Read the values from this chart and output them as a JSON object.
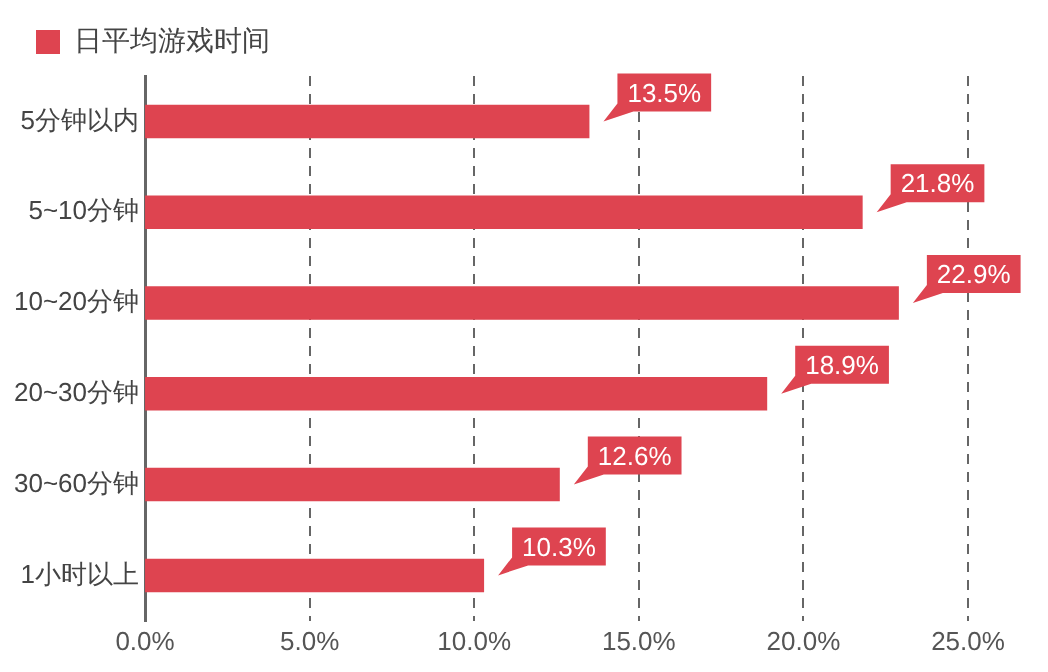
{
  "chart_data": {
    "type": "bar",
    "orientation": "horizontal",
    "categories": [
      "5分钟以内",
      "5~10分钟",
      "10~20分钟",
      "20~30分钟",
      "30~60分钟",
      "1小时以上"
    ],
    "series": [
      {
        "name": "日平均游戏时间",
        "color": "#de4450",
        "values": [
          13.5,
          21.8,
          22.9,
          18.9,
          12.6,
          10.3
        ],
        "value_labels": [
          "13.5%",
          "21.8%",
          "22.9%",
          "18.9%",
          "12.6%",
          "10.3%"
        ]
      }
    ],
    "xlim": [
      0,
      25
    ],
    "xticks": [
      {
        "value": 0,
        "label": "0.0%"
      },
      {
        "value": 5,
        "label": "5.0%"
      },
      {
        "value": 10,
        "label": "10.0%"
      },
      {
        "value": 15,
        "label": "15.0%"
      },
      {
        "value": 20,
        "label": "20.0%"
      },
      {
        "value": 25,
        "label": "25.0%"
      }
    ],
    "grid": "x",
    "legend": "top left"
  }
}
